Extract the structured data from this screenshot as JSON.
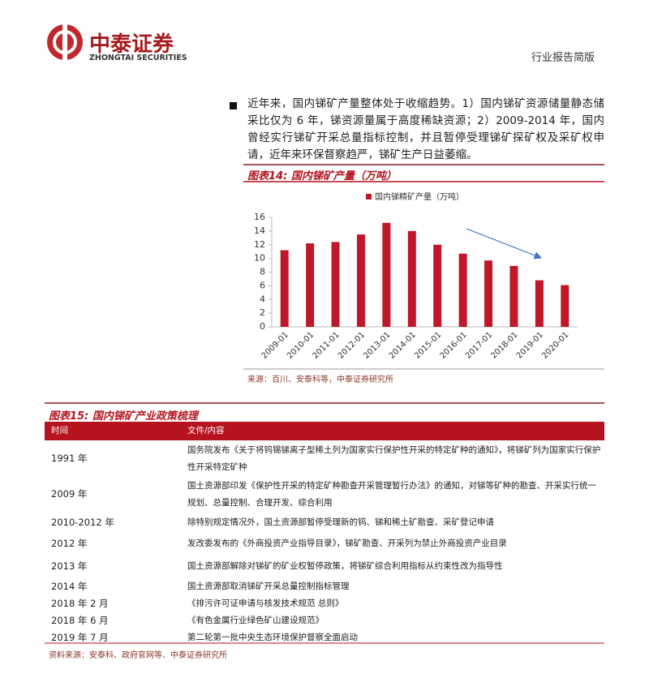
{
  "header": {
    "logo_cn": "中泰证券",
    "logo_en": "ZHONGTAI SECURITIES",
    "report_type": "行业报告简版"
  },
  "paragraph": "近年来，国内锑矿产量整体处于收缩趋势。1）国内锑矿资源储量静态储采比仅为 6 年，锑资源量属于高度稀缺资源；2）2009-2014 年，国内曾经实行锑矿开采总量指标控制，并且暂停受理锑矿探矿权及采矿权申请，近年来环保督察趋严，锑矿生产日益萎缩。",
  "chart_data": {
    "type": "bar",
    "title": "图表14: 国内锑矿产量（万吨）",
    "categories": [
      "2009-01",
      "2010-01",
      "2011-01",
      "2012-01",
      "2013-01",
      "2014-01",
      "2015-01",
      "2016-01",
      "2017-01",
      "2018-01",
      "2019-01",
      "2020-01"
    ],
    "series": [
      {
        "name": "国内锑精矿产量（万吨）",
        "color": "#c0172b",
        "values": [
          11.2,
          12.2,
          12.4,
          13.5,
          15.2,
          14,
          12,
          10.7,
          9.7,
          8.9,
          6.8,
          6.1
        ]
      }
    ],
    "ylim": [
      0,
      16
    ],
    "yticks": [
      0,
      2,
      4,
      6,
      8,
      10,
      12,
      14,
      16
    ],
    "source": "来源：百川、安泰科等，中泰证券研究所"
  },
  "table": {
    "title": "图表15: 国内锑矿产业政策梳理",
    "columns": [
      "时间",
      "文件/内容"
    ],
    "rows": [
      [
        "1991 年",
        "国务院发布《关于将钨锡锑离子型稀土列为国家实行保护性开采的特定矿种的通知》，将锑矿列为国家实行保护性开采特定矿种"
      ],
      [
        "2009 年",
        "国土资源部印发《保护性开采的特定矿种勘查开采管理暂行办法》的通知，对锑等矿种的勘查、开采实行统一规划、总量控制、合理开发、综合利用"
      ],
      [
        "2010-2012 年",
        "除特别规定情况外，国土资源部暂停受理新的钨、锑和稀土矿勘查、采矿登记申请"
      ],
      [
        "2012 年",
        "发改委发布的《外商投资产业指导目录》，锑矿勘查、开采列为禁止外商投资产业目录"
      ],
      [
        "2013 年",
        "国土资源部解除对锑矿的矿业权暂停政策，将锑矿综合利用指标从约束性改为指导性"
      ],
      [
        "2014 年",
        "国土资源部取消锑矿开采总量控制指标管理"
      ],
      [
        "2018 年 2 月",
        "《排污许可证申请与核发技术规范 总则》"
      ],
      [
        "2018 年 6 月",
        "《有色金属行业绿色矿山建设规范》"
      ],
      [
        "2019 年 7 月",
        "第二轮第一批中央生态环境保护督察全面启动"
      ]
    ],
    "source": "资料来源：安泰科、政府官网等、中泰证券研究所"
  }
}
